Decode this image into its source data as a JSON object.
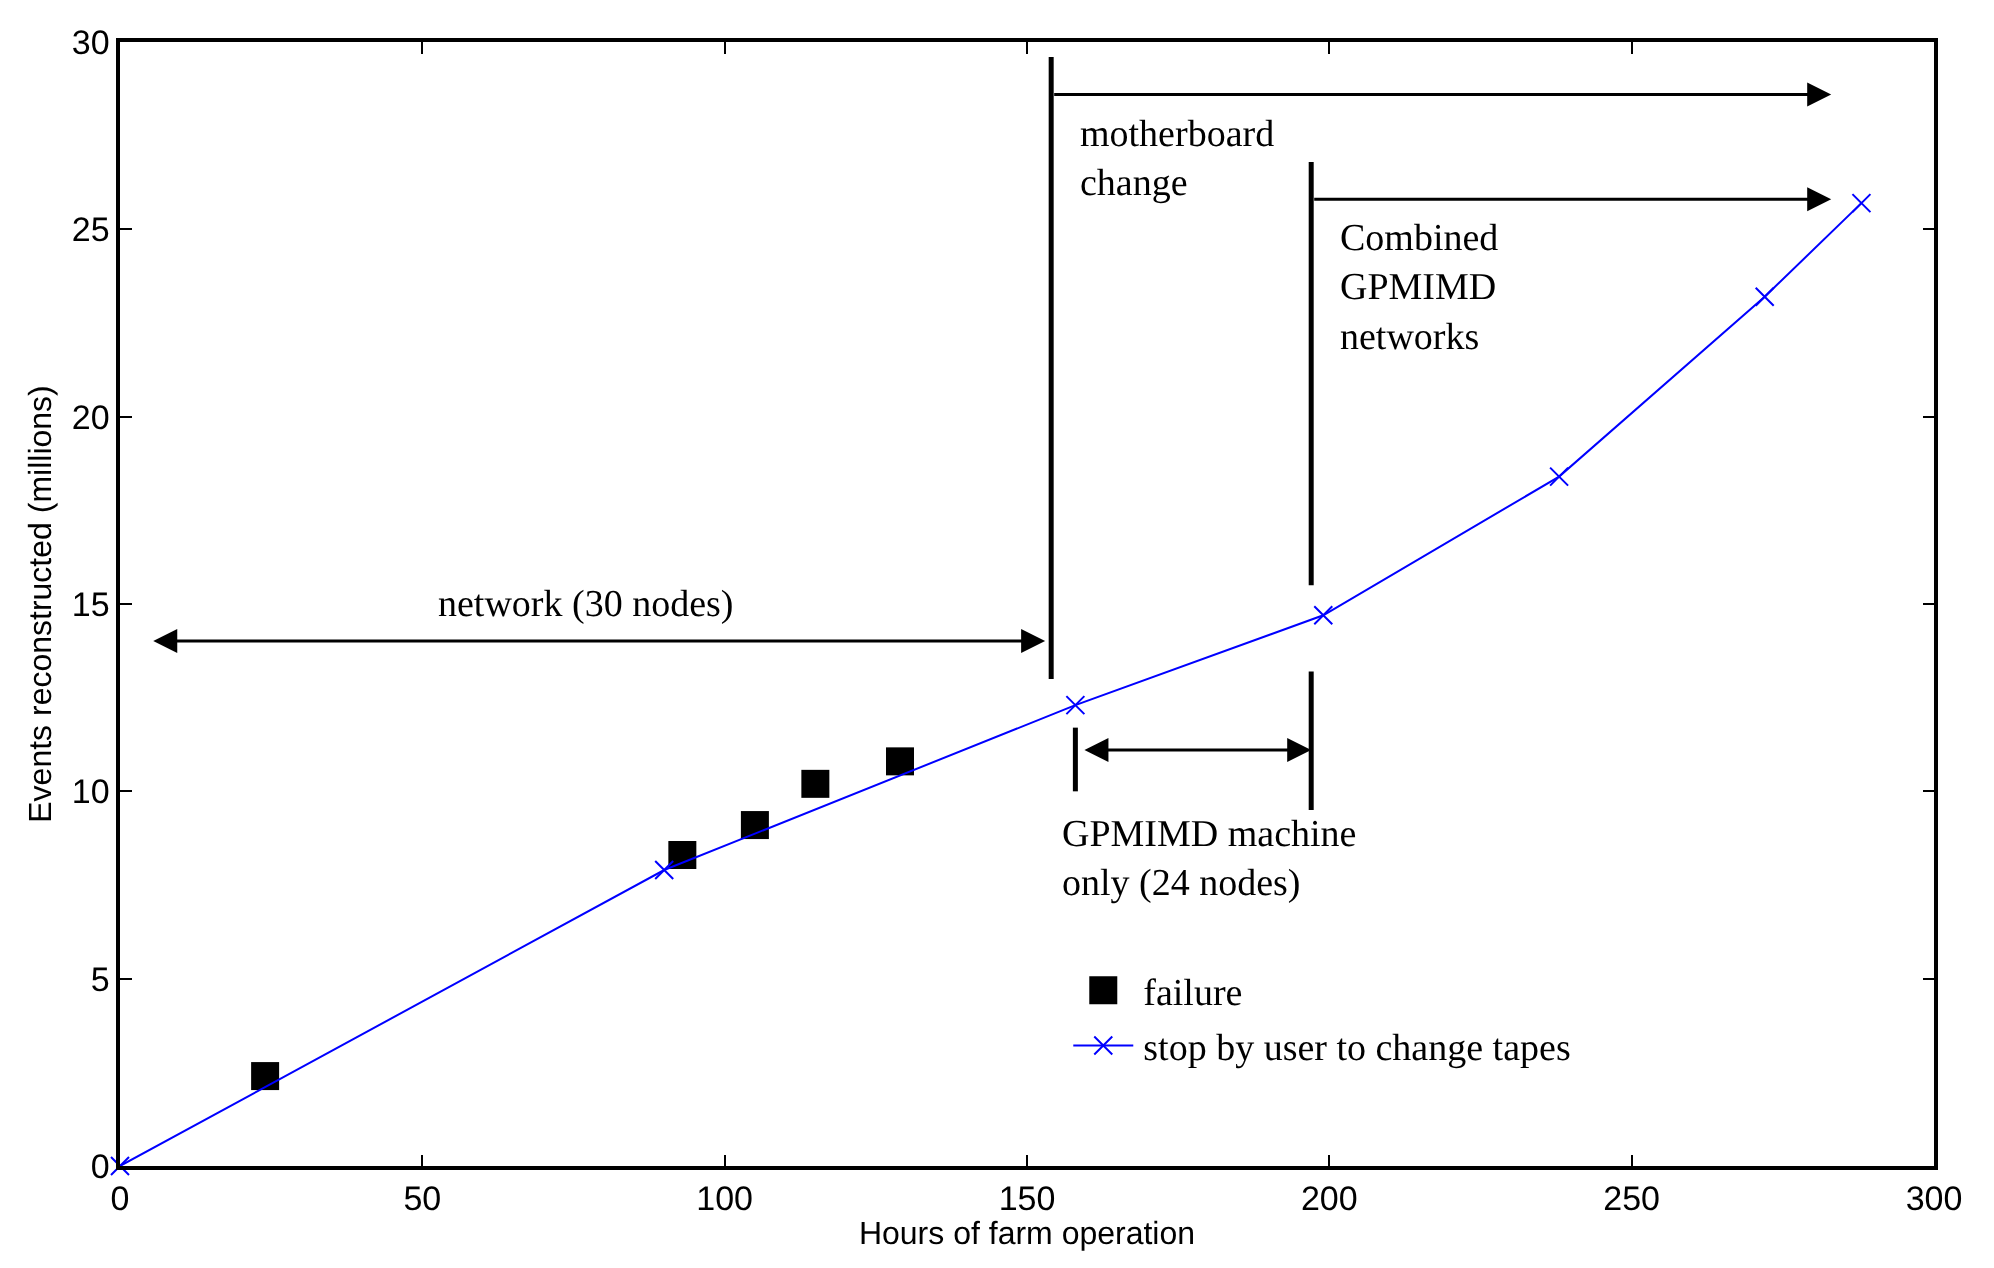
{
  "chart_data": {
    "type": "line",
    "xlabel": "Hours of farm operation",
    "ylabel": "Events reconstructed (millions)",
    "xlim": [
      0,
      300
    ],
    "xticks": [
      0,
      50,
      100,
      150,
      200,
      250,
      300
    ],
    "ylim": [
      0,
      30
    ],
    "yticks": [
      0,
      5,
      10,
      15,
      20,
      25,
      30
    ],
    "legend": "bottom right",
    "series": [
      {
        "name": "failure",
        "type": "scatter",
        "marker": "square",
        "color": "#000000",
        "x": [
          24,
          93,
          105,
          115,
          129
        ],
        "values": [
          2.4,
          8.3,
          9.1,
          10.2,
          10.8
        ]
      },
      {
        "name": "stop by user to change tapes",
        "marker": "cross",
        "line_style": "solid",
        "color": "#0000ff",
        "x": [
          0,
          90,
          158,
          199,
          238,
          272,
          288
        ],
        "values": [
          0,
          7.9,
          12.3,
          14.7,
          18.4,
          23.2,
          25.7
        ]
      }
    ],
    "ref_lines": [
      {
        "axis": "x",
        "value": 154,
        "label": "motherboard change",
        "color": "#000000"
      },
      {
        "axis": "x",
        "value": 197,
        "label": "Combined GPMIMD networks",
        "color": "#000000"
      }
    ],
    "annotations": [
      "network (30 nodes)",
      "GPMIMD machine only (24 nodes)"
    ]
  }
}
